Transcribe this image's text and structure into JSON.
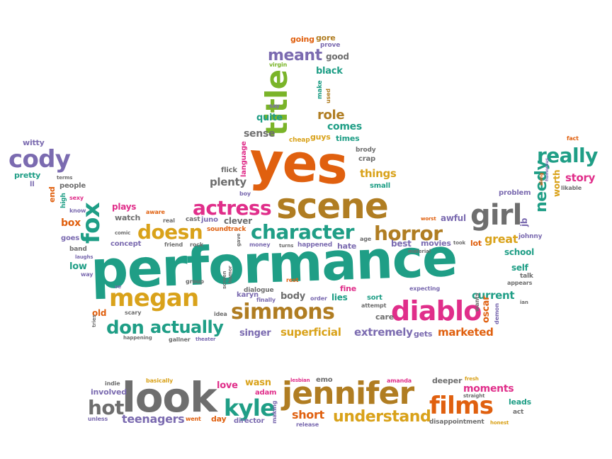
{
  "colors": {
    "teal": "#1f9e86",
    "orange": "#e0600f",
    "brown": "#b07d22",
    "mustard": "#d9a21a",
    "magenta": "#e02e8a",
    "purple": "#7b6bb0",
    "gray": "#6e6e6e",
    "green": "#7ab429"
  },
  "words": [
    {
      "text": "performance",
      "color": "teal"
    },
    {
      "text": "yes",
      "color": "orange"
    },
    {
      "text": "scene",
      "color": "brown"
    },
    {
      "text": "title",
      "color": "green"
    },
    {
      "text": "look",
      "color": "gray"
    },
    {
      "text": "jennifer",
      "color": "brown"
    },
    {
      "text": "films",
      "color": "orange"
    },
    {
      "text": "girl",
      "color": "gray"
    },
    {
      "text": "diablo",
      "color": "magenta"
    },
    {
      "text": "megan",
      "color": "mustard"
    },
    {
      "text": "simmons",
      "color": "brown"
    },
    {
      "text": "fox",
      "color": "teal"
    },
    {
      "text": "cody",
      "color": "purple"
    },
    {
      "text": "really",
      "color": "teal"
    },
    {
      "text": "character",
      "color": "teal"
    },
    {
      "text": "horror",
      "color": "brown"
    },
    {
      "text": "actress",
      "color": "magenta"
    },
    {
      "text": "doesn",
      "color": "mustard"
    },
    {
      "text": "meant",
      "color": "purple"
    },
    {
      "text": "don",
      "color": "teal"
    },
    {
      "text": "actually",
      "color": "teal"
    },
    {
      "text": "kyle",
      "color": "teal"
    },
    {
      "text": "hot",
      "color": "gray"
    },
    {
      "text": "needy",
      "color": "teal"
    },
    {
      "text": "understand",
      "color": "mustard"
    },
    {
      "text": "short",
      "color": "orange"
    },
    {
      "text": "role",
      "color": "brown"
    },
    {
      "text": "teenagers",
      "color": "purple"
    },
    {
      "text": "moments",
      "color": "magenta"
    },
    {
      "text": "superficial",
      "color": "mustard"
    },
    {
      "text": "extremely",
      "color": "purple"
    },
    {
      "text": "marketed",
      "color": "orange"
    },
    {
      "text": "current",
      "color": "teal"
    },
    {
      "text": "great",
      "color": "mustard"
    },
    {
      "text": "story",
      "color": "magenta"
    },
    {
      "text": "things",
      "color": "mustard"
    },
    {
      "text": "plenty",
      "color": "gray"
    },
    {
      "text": "sense",
      "color": "gray"
    },
    {
      "text": "comes",
      "color": "teal"
    },
    {
      "text": "quite",
      "color": "teal"
    },
    {
      "text": "black",
      "color": "teal"
    },
    {
      "text": "good",
      "color": "gray"
    },
    {
      "text": "going",
      "color": "orange"
    },
    {
      "text": "gore",
      "color": "brown"
    },
    {
      "text": "prove",
      "color": "purple"
    },
    {
      "text": "virgin",
      "color": "green"
    },
    {
      "text": "say",
      "color": "purple"
    },
    {
      "text": "make",
      "color": "teal"
    },
    {
      "text": "used",
      "color": "brown"
    },
    {
      "text": "guys",
      "color": "mustard"
    },
    {
      "text": "times",
      "color": "teal"
    },
    {
      "text": "cheap",
      "color": "mustard"
    },
    {
      "text": "brody",
      "color": "gray"
    },
    {
      "text": "crap",
      "color": "gray"
    },
    {
      "text": "flick",
      "color": "gray"
    },
    {
      "text": "language",
      "color": "magenta"
    },
    {
      "text": "small",
      "color": "teal"
    },
    {
      "text": "boy",
      "color": "purple"
    },
    {
      "text": "witty",
      "color": "purple"
    },
    {
      "text": "pretty",
      "color": "teal"
    },
    {
      "text": "ll",
      "color": "purple"
    },
    {
      "text": "terms",
      "color": "gray"
    },
    {
      "text": "people",
      "color": "gray"
    },
    {
      "text": "end",
      "color": "orange"
    },
    {
      "text": "high",
      "color": "teal"
    },
    {
      "text": "sexy",
      "color": "magenta"
    },
    {
      "text": "know",
      "color": "purple"
    },
    {
      "text": "box",
      "color": "orange"
    },
    {
      "text": "goes",
      "color": "purple"
    },
    {
      "text": "band",
      "color": "gray"
    },
    {
      "text": "laughs",
      "color": "purple"
    },
    {
      "text": "low",
      "color": "teal"
    },
    {
      "text": "way",
      "color": "purple"
    },
    {
      "text": "plays",
      "color": "magenta"
    },
    {
      "text": "watch",
      "color": "gray"
    },
    {
      "text": "aware",
      "color": "orange"
    },
    {
      "text": "real",
      "color": "gray"
    },
    {
      "text": "cast",
      "color": "gray"
    },
    {
      "text": "clever",
      "color": "gray"
    },
    {
      "text": "juno",
      "color": "purple"
    },
    {
      "text": "soundtrack",
      "color": "orange"
    },
    {
      "text": "comic",
      "color": "gray"
    },
    {
      "text": "concept",
      "color": "purple"
    },
    {
      "text": "friend",
      "color": "gray"
    },
    {
      "text": "rock",
      "color": "gray"
    },
    {
      "text": "gave",
      "color": "gray"
    },
    {
      "text": "money",
      "color": "purple"
    },
    {
      "text": "turns",
      "color": "gray"
    },
    {
      "text": "happened",
      "color": "purple"
    },
    {
      "text": "hate",
      "color": "purple"
    },
    {
      "text": "age",
      "color": "gray"
    },
    {
      "text": "best",
      "color": "purple"
    },
    {
      "text": "movies",
      "color": "purple"
    },
    {
      "text": "took",
      "color": "gray"
    },
    {
      "text": "lot",
      "color": "orange"
    },
    {
      "text": "material",
      "color": "gray"
    },
    {
      "text": "awful",
      "color": "purple"
    },
    {
      "text": "worst",
      "color": "orange"
    },
    {
      "text": "jb",
      "color": "purple"
    },
    {
      "text": "problem",
      "color": "purple"
    },
    {
      "text": "worth",
      "color": "mustard"
    },
    {
      "text": "likable",
      "color": "gray"
    },
    {
      "text": "fact",
      "color": "orange"
    },
    {
      "text": "johnny",
      "color": "purple"
    },
    {
      "text": "school",
      "color": "teal"
    },
    {
      "text": "self",
      "color": "teal"
    },
    {
      "text": "talk",
      "color": "gray"
    },
    {
      "text": "appears",
      "color": "gray"
    },
    {
      "text": "humorous",
      "color": "purple"
    },
    {
      "text": "along",
      "color": "orange"
    },
    {
      "text": "ve",
      "color": "purple"
    },
    {
      "text": "group",
      "color": "gray"
    },
    {
      "text": "screen",
      "color": "gray"
    },
    {
      "text": "humor",
      "color": "gray"
    },
    {
      "text": "karyn",
      "color": "purple"
    },
    {
      "text": "rest",
      "color": "orange"
    },
    {
      "text": "dialogue",
      "color": "gray"
    },
    {
      "text": "finally",
      "color": "purple"
    },
    {
      "text": "body",
      "color": "gray"
    },
    {
      "text": "order",
      "color": "purple"
    },
    {
      "text": "lies",
      "color": "teal"
    },
    {
      "text": "fine",
      "color": "magenta"
    },
    {
      "text": "sort",
      "color": "teal"
    },
    {
      "text": "attempt",
      "color": "gray"
    },
    {
      "text": "care",
      "color": "gray"
    },
    {
      "text": "expecting",
      "color": "purple"
    },
    {
      "text": "wants",
      "color": "gray"
    },
    {
      "text": "oscar",
      "color": "orange"
    },
    {
      "text": "demon",
      "color": "purple"
    },
    {
      "text": "ian",
      "color": "gray"
    },
    {
      "text": "old",
      "color": "orange"
    },
    {
      "text": "tries",
      "color": "gray"
    },
    {
      "text": "scary",
      "color": "gray"
    },
    {
      "text": "idea",
      "color": "gray"
    },
    {
      "text": "happening",
      "color": "gray"
    },
    {
      "text": "gallner",
      "color": "gray"
    },
    {
      "text": "theater",
      "color": "purple"
    },
    {
      "text": "singer",
      "color": "purple"
    },
    {
      "text": "gets",
      "color": "purple"
    },
    {
      "text": "indie",
      "color": "gray"
    },
    {
      "text": "basically",
      "color": "mustard"
    },
    {
      "text": "involved",
      "color": "purple"
    },
    {
      "text": "unless",
      "color": "purple"
    },
    {
      "text": "love",
      "color": "magenta"
    },
    {
      "text": "wasn",
      "color": "mustard"
    },
    {
      "text": "adam",
      "color": "magenta"
    },
    {
      "text": "went",
      "color": "orange"
    },
    {
      "text": "day",
      "color": "orange"
    },
    {
      "text": "director",
      "color": "purple"
    },
    {
      "text": "making",
      "color": "purple"
    },
    {
      "text": "lesbian",
      "color": "magenta"
    },
    {
      "text": "emo",
      "color": "gray"
    },
    {
      "text": "release",
      "color": "purple"
    },
    {
      "text": "amanda",
      "color": "magenta"
    },
    {
      "text": "deeper",
      "color": "gray"
    },
    {
      "text": "fresh",
      "color": "mustard"
    },
    {
      "text": "straight",
      "color": "gray"
    },
    {
      "text": "leads",
      "color": "teal"
    },
    {
      "text": "act",
      "color": "gray"
    },
    {
      "text": "disappointment",
      "color": "gray"
    },
    {
      "text": "honest",
      "color": "mustard"
    }
  ]
}
